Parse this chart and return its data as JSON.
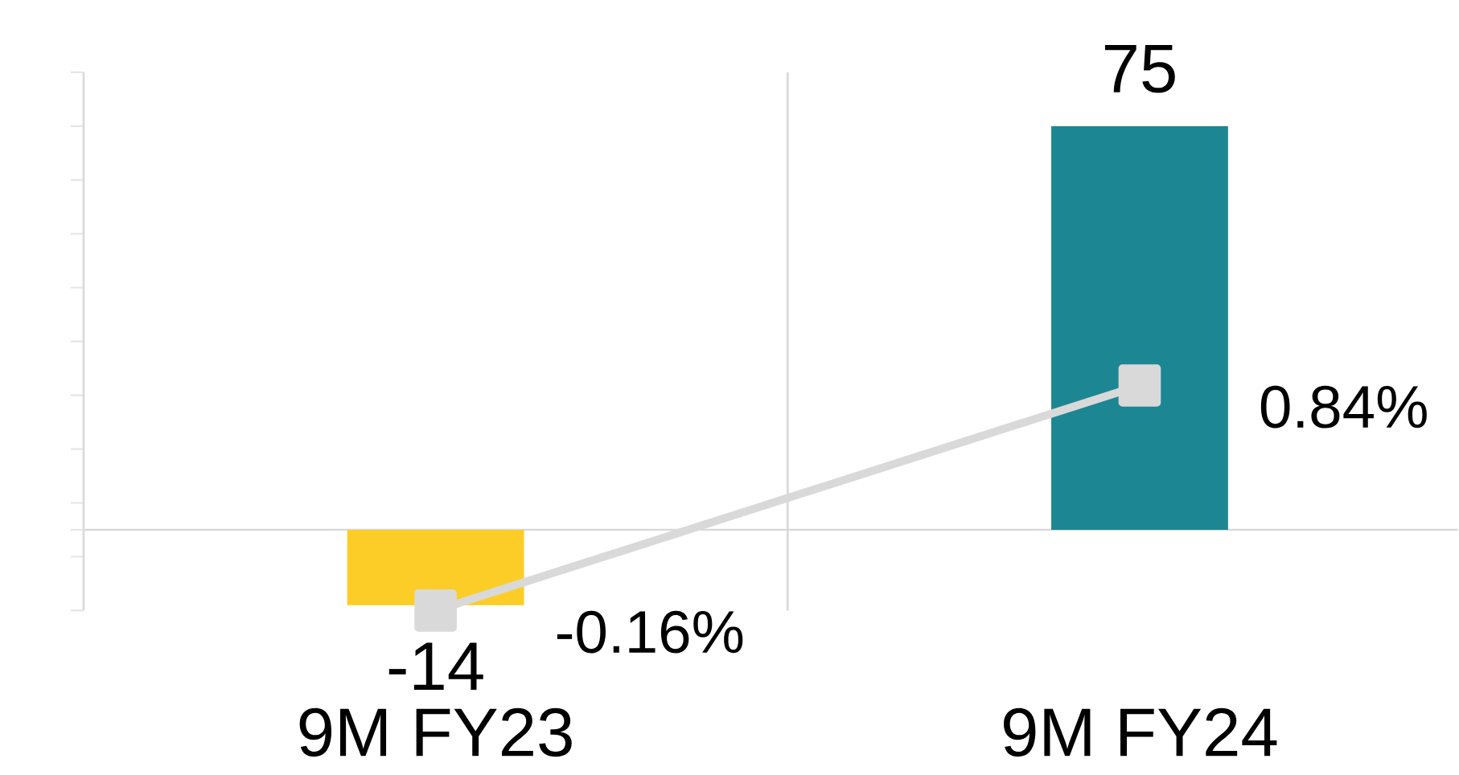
{
  "chart_data": {
    "type": "bar",
    "categories": [
      "9M FY23",
      "9M FY24"
    ],
    "ylim": [
      -15,
      85
    ],
    "yticks": [
      {
        "value": -15,
        "label": null
      },
      {
        "value": -5,
        "label": null
      },
      {
        "value": 5,
        "label": null
      },
      {
        "value": 15,
        "label": null
      },
      {
        "value": 25,
        "label": null
      },
      {
        "value": 35,
        "label": null
      },
      {
        "value": 45,
        "label": null
      },
      {
        "value": 55,
        "label": null
      },
      {
        "value": 65,
        "label": null
      },
      {
        "value": 75,
        "label": null
      },
      {
        "value": 85,
        "label": null
      }
    ],
    "grid": "x",
    "series": [
      {
        "type": "bar",
        "colors": [
          "#fccd26",
          "#1d8693"
        ],
        "values": [
          -14,
          75
        ],
        "value_labels": [
          "-14",
          "75"
        ]
      },
      {
        "type": "line",
        "axis": "y2",
        "color": "#d9d9d9",
        "marker": "square",
        "values": [
          -0.16,
          0.84
        ],
        "value_labels": [
          "-0.16%",
          "0.84%"
        ]
      }
    ]
  }
}
